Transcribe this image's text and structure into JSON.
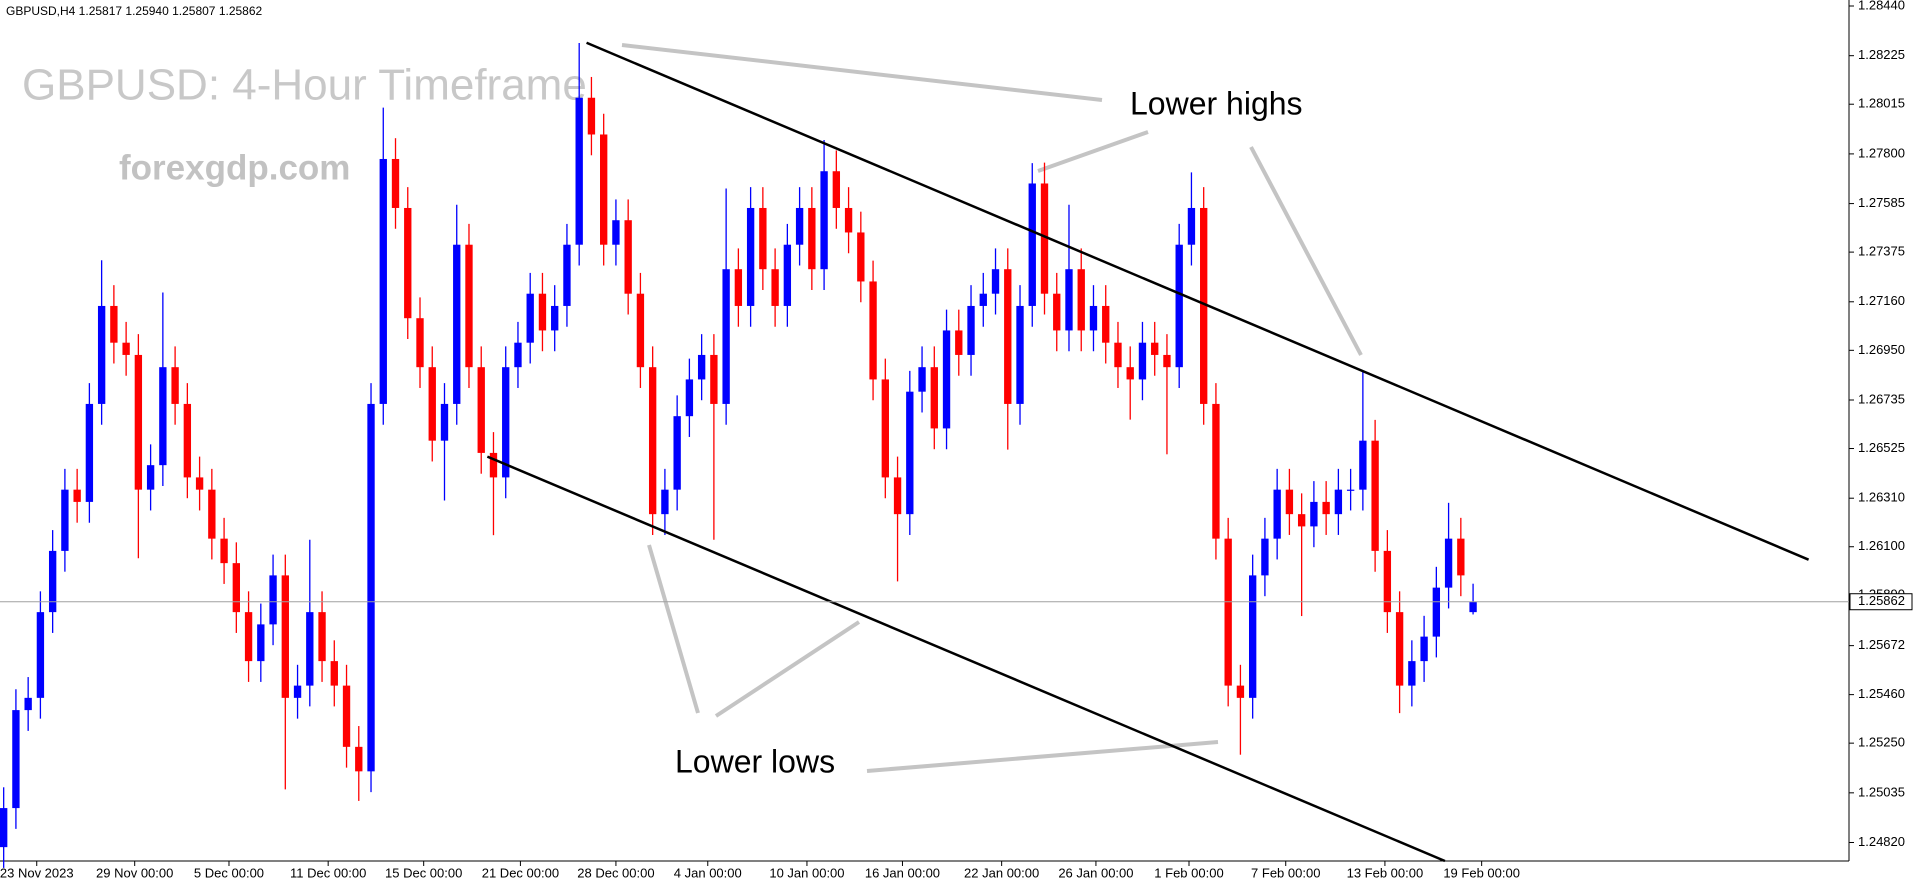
{
  "chart_data": {
    "type": "candlestick",
    "header": "GBPUSD,H4  1.25817 1.25940 1.25807 1.25862",
    "title": "GBPUSD: 4-Hour Timeframe",
    "watermark": "forexgdp.com",
    "annotations": [
      "Lower highs",
      "Lower lows"
    ],
    "up_color": "#0000ff",
    "down_color": "#ff0000",
    "xlim": [
      -0.3,
      150.7
    ],
    "ylim": [
      1.2474,
      1.28466
    ],
    "xticks": [
      {
        "value": 2.7,
        "label": "23 Nov 2023"
      },
      {
        "value": 10.7,
        "label": "29 Nov 00:00"
      },
      {
        "value": 18.4,
        "label": "5 Dec 00:00"
      },
      {
        "value": 26.5,
        "label": "11 Dec 00:00"
      },
      {
        "value": 34.3,
        "label": "15 Dec 00:00"
      },
      {
        "value": 42.2,
        "label": "21 Dec 00:00"
      },
      {
        "value": 50,
        "label": "28 Dec 00:00"
      },
      {
        "value": 57.5,
        "label": "4 Jan 00:00"
      },
      {
        "value": 65.6,
        "label": "10 Jan 00:00"
      },
      {
        "value": 73.4,
        "label": "16 Jan 00:00"
      },
      {
        "value": 81.5,
        "label": "22 Jan 00:00"
      },
      {
        "value": 89.2,
        "label": "26 Jan 00:00"
      },
      {
        "value": 96.8,
        "label": "1 Feb 00:00"
      },
      {
        "value": 104.7,
        "label": "7 Feb 00:00"
      },
      {
        "value": 112.8,
        "label": "13 Feb 00:00"
      },
      {
        "value": 120.7,
        "label": "19 Feb 00:00"
      }
    ],
    "yticks": [
      {
        "value": 1.2844,
        "label": "1.28440"
      },
      {
        "value": 1.28225,
        "label": "1.28225"
      },
      {
        "value": 1.28015,
        "label": "1.28015"
      },
      {
        "value": 1.278,
        "label": "1.27800"
      },
      {
        "value": 1.27585,
        "label": "1.27585"
      },
      {
        "value": 1.27375,
        "label": "1.27375"
      },
      {
        "value": 1.2716,
        "label": "1.27160"
      },
      {
        "value": 1.2695,
        "label": "1.26950"
      },
      {
        "value": 1.26735,
        "label": "1.26735"
      },
      {
        "value": 1.26525,
        "label": "1.26525"
      },
      {
        "value": 1.2631,
        "label": "1.26310"
      },
      {
        "value": 1.261,
        "label": "1.26100"
      },
      {
        "value": 1.2589,
        "label": "1.25890"
      },
      {
        "value": 1.25672,
        "label": "1.25672"
      },
      {
        "value": 1.2546,
        "label": "1.25460"
      },
      {
        "value": 1.2525,
        "label": "1.25250"
      },
      {
        "value": 1.25035,
        "label": "1.25035"
      },
      {
        "value": 1.2482,
        "label": "1.24820"
      }
    ],
    "last_price": 1.25862,
    "trendlines": [
      {
        "x": [
          47.6,
          147.4
        ],
        "y": [
          1.28281,
          1.26044
        ]
      },
      {
        "x": [
          39.5,
          117.7
        ],
        "y": [
          1.2649,
          1.2474
        ]
      }
    ],
    "open": [
      1.248,
      1.24969,
      1.25393,
      1.25446,
      1.25817,
      1.26082,
      1.26347,
      1.26294,
      1.26718,
      1.27142,
      1.26983,
      1.2693,
      1.26347,
      1.26453,
      1.26877,
      1.26718,
      1.264,
      1.26347,
      1.26135,
      1.26029,
      1.25817,
      1.25605,
      1.25764,
      1.25976,
      1.25446,
      1.25499,
      1.25817,
      1.25605,
      1.25499,
      1.25234,
      1.25128,
      1.26718,
      1.27778,
      1.27566,
      1.27089,
      1.26877,
      1.26559,
      1.26718,
      1.27407,
      1.26877,
      1.26506,
      1.264,
      1.26877,
      1.26983,
      1.27195,
      1.27036,
      1.27142,
      1.27407,
      1.28043,
      1.27884,
      1.27407,
      1.27513,
      1.27195,
      1.26877,
      1.26241,
      1.26347,
      1.26665,
      1.26824,
      1.2693,
      1.26718,
      1.27301,
      1.27142,
      1.27566,
      1.27301,
      1.27142,
      1.27407,
      1.27566,
      1.27301,
      1.27725,
      1.27566,
      1.2746,
      1.27248,
      1.26824,
      1.264,
      1.26241,
      1.26771,
      1.26877,
      1.26612,
      1.27036,
      1.2693,
      1.27142,
      1.27195,
      1.27301,
      1.26718,
      1.27142,
      1.27672,
      1.27195,
      1.27036,
      1.27301,
      1.27036,
      1.27142,
      1.26983,
      1.26877,
      1.26824,
      1.26983,
      1.2693,
      1.26877,
      1.27407,
      1.27566,
      1.26718,
      1.26135,
      1.25499,
      1.25446,
      1.25976,
      1.26135,
      1.26347,
      1.26241,
      1.26188,
      1.26294,
      1.26241,
      1.26347,
      1.26347,
      1.26559,
      1.26082,
      1.25817,
      1.25499,
      1.25605,
      1.25711,
      1.25923,
      1.26135,
      1.25817
    ],
    "high": [
      1.25059,
      1.25483,
      1.25536,
      1.25907,
      1.26172,
      1.26437,
      1.26437,
      1.26808,
      1.2734,
      1.27232,
      1.27073,
      1.2702,
      1.26543,
      1.272,
      1.26967,
      1.26808,
      1.2649,
      1.26437,
      1.26225,
      1.26119,
      1.25907,
      1.25854,
      1.26066,
      1.26066,
      1.25589,
      1.2613,
      1.25907,
      1.25695,
      1.25589,
      1.25324,
      1.26808,
      1.28,
      1.27868,
      1.27656,
      1.27179,
      1.26967,
      1.26808,
      1.2758,
      1.27497,
      1.26967,
      1.26596,
      1.26967,
      1.27073,
      1.27285,
      1.27285,
      1.27232,
      1.27497,
      1.2828,
      1.28133,
      1.27974,
      1.27603,
      1.27603,
      1.27285,
      1.26967,
      1.26437,
      1.26755,
      1.26914,
      1.2702,
      1.2702,
      1.2765,
      1.27391,
      1.27656,
      1.27656,
      1.27391,
      1.27497,
      1.27656,
      1.27656,
      1.2786,
      1.27815,
      1.27656,
      1.2755,
      1.27338,
      1.26914,
      1.2649,
      1.26861,
      1.26967,
      1.26967,
      1.27126,
      1.27126,
      1.27232,
      1.27285,
      1.27391,
      1.27391,
      1.27232,
      1.2776,
      1.27762,
      1.27285,
      1.2758,
      1.27391,
      1.27232,
      1.27232,
      1.27073,
      1.26967,
      1.27073,
      1.27073,
      1.2702,
      1.27497,
      1.2772,
      1.27656,
      1.26808,
      1.26225,
      1.25589,
      1.26066,
      1.26225,
      1.26437,
      1.26437,
      1.26331,
      1.26384,
      1.26384,
      1.26437,
      1.26437,
      1.2686,
      1.26649,
      1.26172,
      1.25907,
      1.25695,
      1.25801,
      1.26013,
      1.2629,
      1.26225,
      1.2594
    ],
    "low": [
      1.2471,
      1.24879,
      1.25303,
      1.25356,
      1.25727,
      1.25992,
      1.26204,
      1.26204,
      1.26628,
      1.26893,
      1.2684,
      1.2605,
      1.26257,
      1.26363,
      1.26628,
      1.2631,
      1.26257,
      1.26045,
      1.25939,
      1.25727,
      1.25515,
      1.25515,
      1.25674,
      1.2505,
      1.25356,
      1.25409,
      1.25515,
      1.25409,
      1.25144,
      1.25,
      1.25038,
      1.26628,
      1.27476,
      1.26999,
      1.26787,
      1.26469,
      1.263,
      1.26628,
      1.26787,
      1.26416,
      1.2615,
      1.2631,
      1.26787,
      1.26893,
      1.26946,
      1.26946,
      1.27052,
      1.27317,
      1.27794,
      1.27317,
      1.27317,
      1.27105,
      1.26787,
      1.26151,
      1.26151,
      1.26257,
      1.26575,
      1.26734,
      1.2613,
      1.26628,
      1.27052,
      1.27052,
      1.27211,
      1.27052,
      1.27052,
      1.27317,
      1.27211,
      1.27211,
      1.27476,
      1.2737,
      1.27158,
      1.26734,
      1.2631,
      1.2595,
      1.26151,
      1.26681,
      1.26522,
      1.26522,
      1.2684,
      1.2684,
      1.27052,
      1.27105,
      1.2652,
      1.26628,
      1.27052,
      1.27105,
      1.26946,
      1.26946,
      1.26946,
      1.26946,
      1.26893,
      1.26787,
      1.2665,
      1.26734,
      1.2684,
      1.265,
      1.26787,
      1.27317,
      1.26628,
      1.26045,
      1.25409,
      1.252,
      1.25356,
      1.25886,
      1.26045,
      1.26151,
      1.258,
      1.26098,
      1.26151,
      1.26151,
      1.26257,
      1.26257,
      1.25992,
      1.25727,
      1.2538,
      1.25409,
      1.25515,
      1.25621,
      1.25833,
      1.25886,
      1.25807
    ],
    "close": [
      1.24969,
      1.25393,
      1.25446,
      1.25817,
      1.26082,
      1.26347,
      1.26294,
      1.26718,
      1.27142,
      1.26983,
      1.2693,
      1.26347,
      1.26453,
      1.26877,
      1.26718,
      1.264,
      1.26347,
      1.26135,
      1.26029,
      1.25817,
      1.25605,
      1.25764,
      1.25976,
      1.25446,
      1.25499,
      1.25817,
      1.25605,
      1.25499,
      1.25234,
      1.25128,
      1.26718,
      1.27778,
      1.27566,
      1.27089,
      1.26877,
      1.26559,
      1.26718,
      1.27407,
      1.26877,
      1.26506,
      1.264,
      1.26877,
      1.26983,
      1.27195,
      1.27036,
      1.27142,
      1.27407,
      1.28043,
      1.27884,
      1.27407,
      1.27513,
      1.27195,
      1.26877,
      1.26241,
      1.26347,
      1.26665,
      1.26824,
      1.2693,
      1.26718,
      1.27301,
      1.27142,
      1.27566,
      1.27301,
      1.27142,
      1.27407,
      1.27566,
      1.27301,
      1.27725,
      1.27566,
      1.2746,
      1.27248,
      1.26824,
      1.264,
      1.26241,
      1.26771,
      1.26877,
      1.26612,
      1.27036,
      1.2693,
      1.27142,
      1.27195,
      1.27301,
      1.26718,
      1.27142,
      1.27672,
      1.27195,
      1.27036,
      1.27301,
      1.27036,
      1.27142,
      1.26983,
      1.26877,
      1.26824,
      1.26983,
      1.2693,
      1.26877,
      1.27407,
      1.27566,
      1.26718,
      1.26135,
      1.25499,
      1.25446,
      1.25976,
      1.26135,
      1.26347,
      1.26241,
      1.26188,
      1.26294,
      1.26241,
      1.26347,
      1.26347,
      1.26559,
      1.26082,
      1.25817,
      1.25499,
      1.25605,
      1.25711,
      1.25923,
      1.26135,
      1.25976,
      1.25862
    ]
  }
}
